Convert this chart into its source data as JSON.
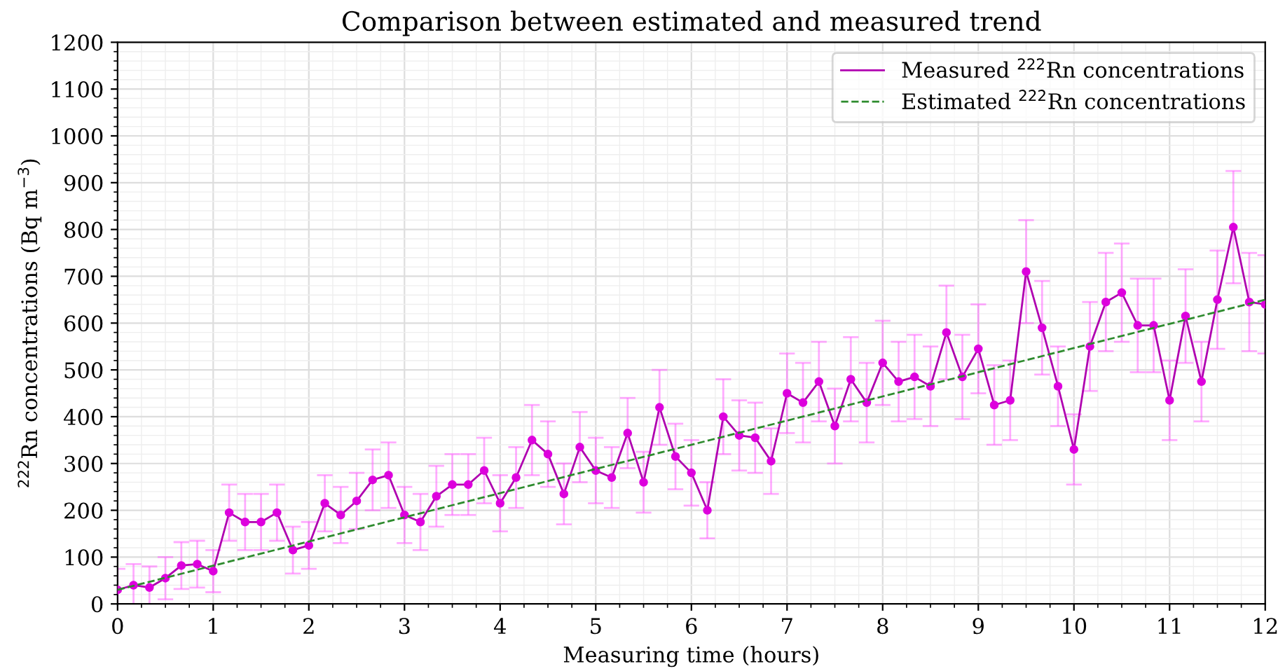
{
  "chart_data": {
    "type": "line",
    "title": "Comparison between estimated and measured trend",
    "xlabel": "Measuring time (hours)",
    "ylabel": "$^{222}$Rn concentrations (Bq m$^{−3}$)",
    "xlim": [
      0,
      12
    ],
    "xticks": [
      0,
      1,
      2,
      3,
      4,
      5,
      6,
      7,
      8,
      9,
      10,
      11,
      12
    ],
    "ylim": [
      0,
      1200
    ],
    "yticks": [
      0,
      100,
      200,
      300,
      400,
      500,
      600,
      700,
      800,
      900,
      1000,
      1100,
      1200
    ],
    "grid": true,
    "legend": "top right",
    "series": [
      {
        "name": "Measured $^{222}$Rn concentrations",
        "color": "#b000b0",
        "marker": "circle",
        "line_style": "solid",
        "x": [
          0,
          0.1667,
          0.3333,
          0.5,
          0.6667,
          0.8333,
          1,
          1.1667,
          1.3333,
          1.5,
          1.6667,
          1.8333,
          2,
          2.1667,
          2.3333,
          2.5,
          2.6667,
          2.8333,
          3,
          3.1667,
          3.3333,
          3.5,
          3.6667,
          3.8333,
          4,
          4.1667,
          4.3333,
          4.5,
          4.6667,
          4.8333,
          5,
          5.1667,
          5.3333,
          5.5,
          5.6667,
          5.8333,
          6,
          6.1667,
          6.3333,
          6.5,
          6.6667,
          6.8333,
          7,
          7.1667,
          7.3333,
          7.5,
          7.6667,
          7.8333,
          8,
          8.1667,
          8.3333,
          8.5,
          8.6667,
          8.8333,
          9,
          9.1667,
          9.3333,
          9.5,
          9.6667,
          9.8333,
          10,
          10.1667,
          10.3333,
          10.5,
          10.6667,
          10.8333,
          11,
          11.1667,
          11.3333,
          11.5,
          11.6667,
          11.8333,
          12
        ],
        "values": [
          30,
          40,
          35,
          55,
          82,
          85,
          70,
          195,
          175,
          175,
          195,
          115,
          125,
          215,
          190,
          220,
          265,
          275,
          190,
          175,
          230,
          255,
          255,
          285,
          215,
          270,
          350,
          320,
          235,
          335,
          285,
          270,
          365,
          260,
          420,
          315,
          280,
          200,
          400,
          360,
          355,
          305,
          450,
          430,
          475,
          380,
          480,
          430,
          515,
          475,
          485,
          465,
          580,
          485,
          545,
          425,
          435,
          710,
          590,
          465,
          330,
          550,
          645,
          665,
          595,
          595,
          435,
          615,
          475,
          650,
          805,
          645,
          640
        ],
        "errors": [
          45,
          45,
          45,
          45,
          50,
          50,
          45,
          60,
          60,
          60,
          60,
          50,
          50,
          60,
          60,
          60,
          65,
          70,
          60,
          60,
          65,
          65,
          65,
          70,
          60,
          65,
          75,
          70,
          65,
          75,
          70,
          65,
          75,
          65,
          80,
          70,
          70,
          60,
          80,
          75,
          75,
          70,
          85,
          85,
          85,
          80,
          90,
          85,
          90,
          85,
          90,
          85,
          100,
          90,
          95,
          85,
          85,
          110,
          100,
          85,
          75,
          95,
          105,
          105,
          100,
          100,
          85,
          100,
          85,
          105,
          120,
          105,
          105
        ]
      },
      {
        "name": "Estimated $^{222}$Rn concentrations",
        "color": "#2e8b2e",
        "marker": "none",
        "line_style": "dashed",
        "x": [
          0,
          12
        ],
        "values": [
          30,
          650
        ]
      }
    ]
  }
}
